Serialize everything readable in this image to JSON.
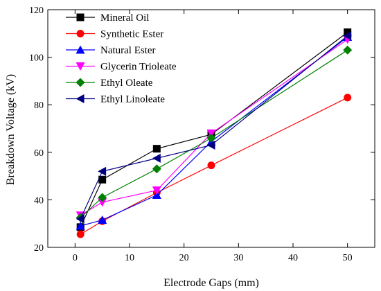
{
  "chart_data": {
    "type": "line",
    "xlabel": "Electrode Gaps (mm)",
    "ylabel": "Breakdown Voltage (kV)",
    "xlim": [
      -5,
      55
    ],
    "ylim": [
      20,
      120
    ],
    "xticks": [
      0,
      10,
      20,
      30,
      40,
      50
    ],
    "yticks": [
      20,
      40,
      60,
      80,
      100,
      120
    ],
    "x": [
      1,
      5,
      15,
      25,
      50
    ],
    "legend_position": "top-left",
    "grid": false,
    "series": [
      {
        "name": "Mineral Oil",
        "color": "#000000",
        "marker": "square",
        "values": [
          28.5,
          48.5,
          61.5,
          67.5,
          110.5
        ]
      },
      {
        "name": "Synthetic Ester",
        "color": "#ff0000",
        "marker": "circle",
        "values": [
          25.5,
          31,
          43,
          54.5,
          83
        ]
      },
      {
        "name": "Natural Ester",
        "color": "#0000ff",
        "marker": "triangle-up",
        "values": [
          29,
          31.5,
          42,
          64.5,
          108.5
        ]
      },
      {
        "name": "Glycerin Trioleate",
        "color": "#ff00ff",
        "marker": "triangle-down",
        "values": [
          33.5,
          39,
          44,
          68,
          107.5
        ]
      },
      {
        "name": "Ethyl Oleate",
        "color": "#008000",
        "marker": "diamond",
        "values": [
          32.5,
          41,
          53,
          66,
          103
        ]
      },
      {
        "name": "Ethyl Linoleate",
        "color": "#000080",
        "marker": "triangle-left",
        "values": [
          32,
          52,
          57.5,
          63,
          109
        ]
      }
    ]
  }
}
